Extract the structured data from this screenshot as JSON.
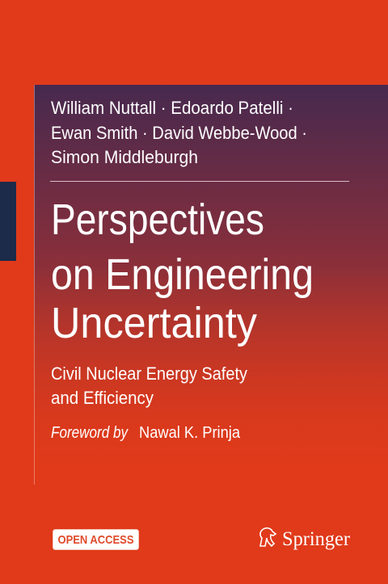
{
  "authors": [
    "William Nuttall · Edoardo Patelli ·",
    "Ewan Smith · David Webbe-Wood ·",
    "Simon Middleburgh"
  ],
  "title": [
    "Perspectives",
    "on Engineering",
    "Uncertainty"
  ],
  "subtitle": [
    "Civil Nuclear Energy Safety",
    "and Efficiency"
  ],
  "foreword": {
    "label": "Foreword by",
    "name": "Nawal K. Prinja"
  },
  "badge": "OPEN ACCESS",
  "publisher": "Springer"
}
